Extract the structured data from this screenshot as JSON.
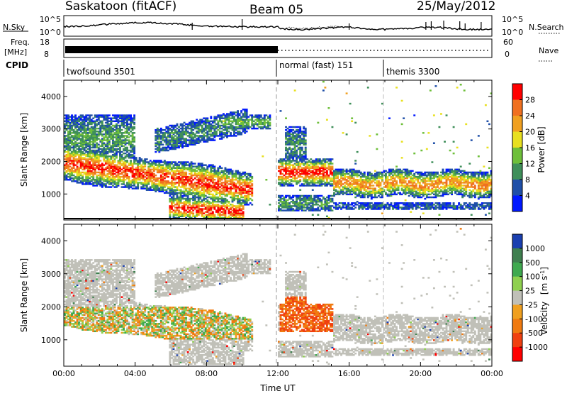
{
  "header": {
    "title": "Saskatoon (fitACF)",
    "beam": "Beam 05",
    "date": "25/May/2012"
  },
  "chart_data": [
    {
      "type": "line",
      "name": "noise-panel",
      "left_label": "N.Sky",
      "right_label": "N.Search",
      "left_ticks": [
        "10^5",
        "10^0"
      ],
      "right_ticks": [
        "10^5",
        "10^0"
      ],
      "x_ticks": [
        "00:00",
        "04:00",
        "08:00",
        "12:00",
        "16:00",
        "20:00",
        "00:00"
      ]
    },
    {
      "type": "line",
      "name": "freq-nave-panel",
      "left_label_top": "Freq.",
      "left_label_bottom": "[MHz]",
      "right_label": "Nave",
      "left_ticks": [
        "18",
        "8"
      ],
      "right_ticks": [
        "60",
        "0"
      ]
    },
    {
      "type": "table",
      "name": "cpid-panel",
      "label": "CPID",
      "programs": [
        {
          "name": "twofsound 3501",
          "start_hour": 0,
          "end_hour": 12
        },
        {
          "name": "normal (fast) 151",
          "start_hour": 12,
          "end_hour": 18
        },
        {
          "name": "themis 3300",
          "start_hour": 18,
          "end_hour": 24
        }
      ]
    },
    {
      "type": "heatmap",
      "name": "power-panel",
      "ylabel": "Slant Range [km]",
      "yticks": [
        "1000",
        "2000",
        "3000",
        "4000"
      ],
      "ylim": [
        200,
        4500
      ],
      "xlim": [
        0,
        24
      ],
      "colorbar_label": "Power [dB]",
      "colorbar_ticks": [
        "4",
        "8",
        "12",
        "16",
        "20",
        "24",
        "28"
      ],
      "colorbar_colors": [
        "#0018ff",
        "#1f4fa8",
        "#3f8f5a",
        "#6ebf3a",
        "#e8e020",
        "#f0a020",
        "#f07020",
        "#ff0000"
      ]
    },
    {
      "type": "heatmap",
      "name": "velocity-panel",
      "ylabel": "Slant Range [km]",
      "yticks": [
        "1000",
        "2000",
        "3000",
        "4000"
      ],
      "ylim": [
        200,
        4500
      ],
      "xlim": [
        0,
        24
      ],
      "xlabel": "Time UT",
      "xticks": [
        "00:00",
        "04:00",
        "08:00",
        "12:00",
        "16:00",
        "20:00",
        "00:00"
      ],
      "colorbar_label": "Velocity",
      "colorbar_unit": "[m s",
      "colorbar_unit_sup": "-1",
      "colorbar_unit_end": "]",
      "colorbar_ticks": [
        "1000",
        "500",
        "100",
        "25",
        "-25",
        "-100",
        "-500",
        "-1000"
      ],
      "colorbar_colors": [
        "#1a3fb0",
        "#3f7f4f",
        "#3fa94f",
        "#8fd04f",
        "#c0c0b8",
        "#f0a020",
        "#f07a10",
        "#f04010",
        "#ff0000"
      ]
    }
  ]
}
